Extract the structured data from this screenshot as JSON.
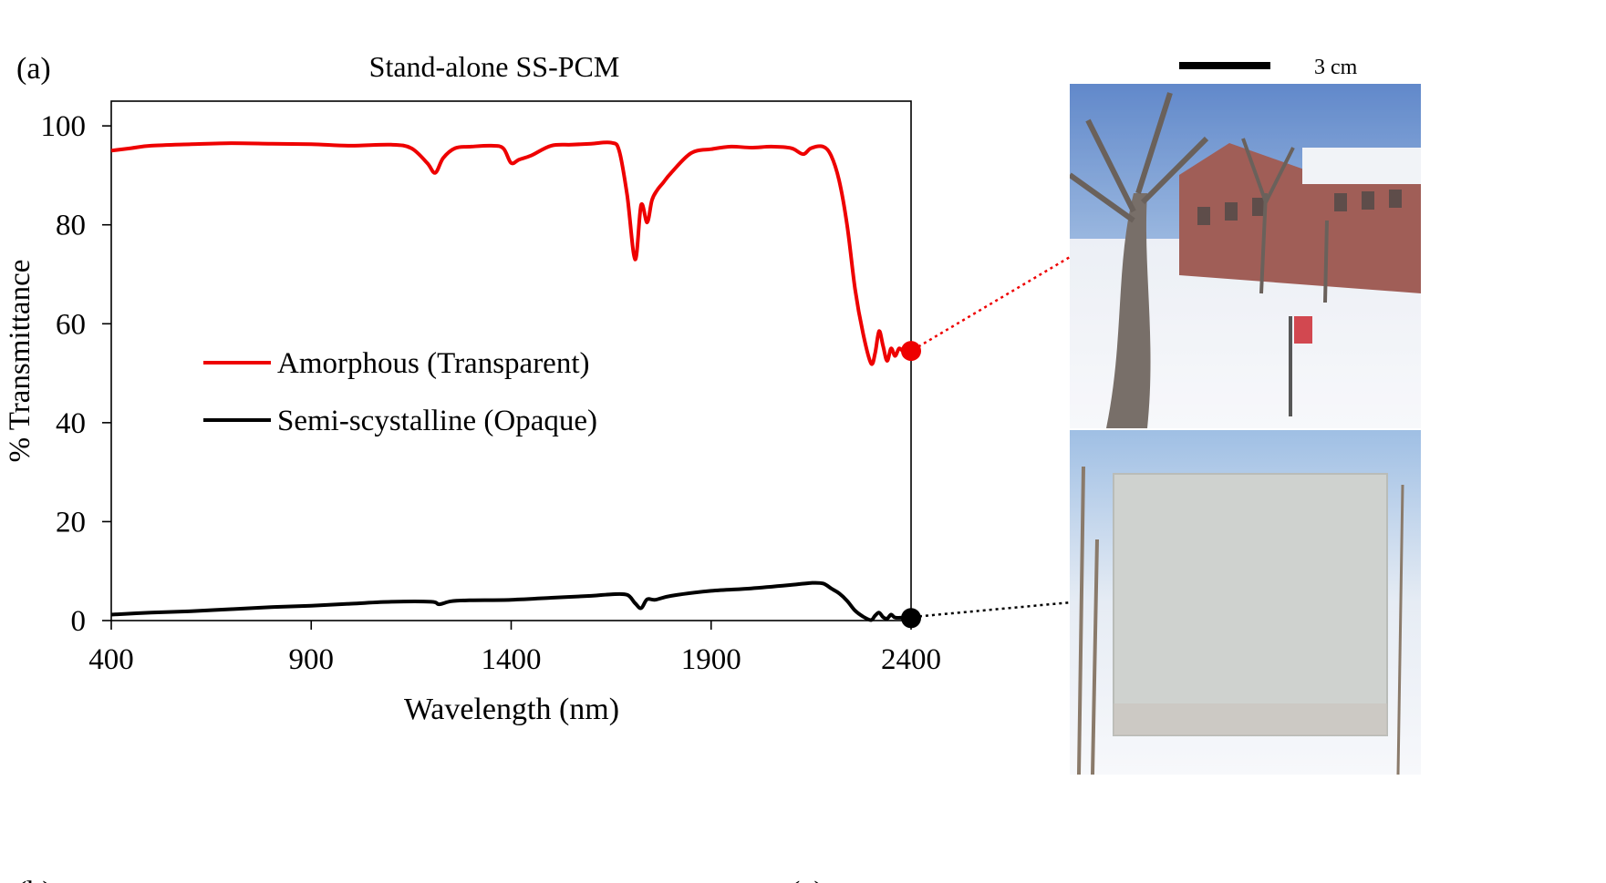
{
  "panel_label": "(a)",
  "scale_bar_label": "3 cm",
  "bottom_labels": [
    "(b)",
    "(c)"
  ],
  "colors": {
    "amorphous": "#ee0000",
    "semi": "#000000",
    "sky": "#4f7fc4",
    "snow": "#f2f4f8",
    "brick": "#8c3b33",
    "sample": "#cfd2cf"
  },
  "photos": {
    "transparent": "photo-amorphous-sample-over-campus-scene",
    "opaque": "photo-semicrystalline-sample-over-campus-scene"
  },
  "chart_data": {
    "type": "line",
    "title": "Stand-alone SS-PCM",
    "xlabel": "Wavelength (nm)",
    "ylabel": "% Transmittance",
    "xlim": [
      400,
      2400
    ],
    "ylim": [
      0,
      105
    ],
    "xticks": [
      400,
      900,
      1400,
      1900,
      2400
    ],
    "yticks": [
      0,
      20,
      40,
      60,
      80,
      100
    ],
    "grid": false,
    "legend_position": "center-left",
    "series": [
      {
        "name": "Amorphous (Transparent)",
        "color": "#ee0000",
        "marker_end": [
          2400,
          54.5
        ],
        "x": [
          400,
          450,
          500,
          600,
          700,
          800,
          900,
          1000,
          1100,
          1150,
          1190,
          1210,
          1230,
          1260,
          1300,
          1350,
          1380,
          1400,
          1420,
          1450,
          1500,
          1550,
          1600,
          1650,
          1670,
          1690,
          1710,
          1725,
          1740,
          1752,
          1765,
          1780,
          1800,
          1850,
          1900,
          1950,
          2000,
          2050,
          2100,
          2130,
          2150,
          2180,
          2200,
          2220,
          2240,
          2260,
          2280,
          2300,
          2310,
          2320,
          2330,
          2340,
          2350,
          2360,
          2370,
          2380,
          2400
        ],
        "y": [
          95.0,
          95.5,
          96.0,
          96.3,
          96.5,
          96.4,
          96.3,
          96.0,
          96.2,
          95.5,
          92.5,
          90.5,
          93.5,
          95.5,
          95.8,
          96.0,
          95.5,
          92.5,
          93.2,
          94.0,
          96.0,
          96.2,
          96.4,
          96.6,
          95.0,
          86.0,
          73.0,
          84.0,
          80.5,
          85.0,
          87.0,
          88.5,
          90.5,
          94.5,
          95.3,
          95.8,
          95.6,
          95.8,
          95.5,
          94.3,
          95.5,
          95.8,
          94.0,
          89.0,
          80.0,
          67.0,
          58.0,
          52.0,
          54.0,
          58.5,
          55.5,
          52.5,
          55.0,
          53.5,
          55.0,
          54.5,
          54.5
        ]
      },
      {
        "name": "Semi-scystalline (Opaque)",
        "color": "#000000",
        "marker_end": [
          2400,
          0.5
        ],
        "x": [
          400,
          500,
          600,
          700,
          800,
          900,
          1000,
          1100,
          1200,
          1220,
          1250,
          1300,
          1400,
          1500,
          1600,
          1650,
          1690,
          1710,
          1725,
          1740,
          1760,
          1800,
          1900,
          2000,
          2100,
          2150,
          2180,
          2200,
          2220,
          2240,
          2260,
          2280,
          2300,
          2310,
          2320,
          2330,
          2340,
          2350,
          2360,
          2380,
          2400
        ],
        "y": [
          1.2,
          1.6,
          1.9,
          2.3,
          2.7,
          3.0,
          3.4,
          3.8,
          3.8,
          3.3,
          3.9,
          4.1,
          4.2,
          4.6,
          5.0,
          5.3,
          5.2,
          3.5,
          2.5,
          4.3,
          4.2,
          5.0,
          6.0,
          6.5,
          7.2,
          7.6,
          7.5,
          6.5,
          5.5,
          4.0,
          2.0,
          0.8,
          0.1,
          1.0,
          1.6,
          0.7,
          0.4,
          1.2,
          0.6,
          0.6,
          0.5
        ]
      }
    ]
  }
}
